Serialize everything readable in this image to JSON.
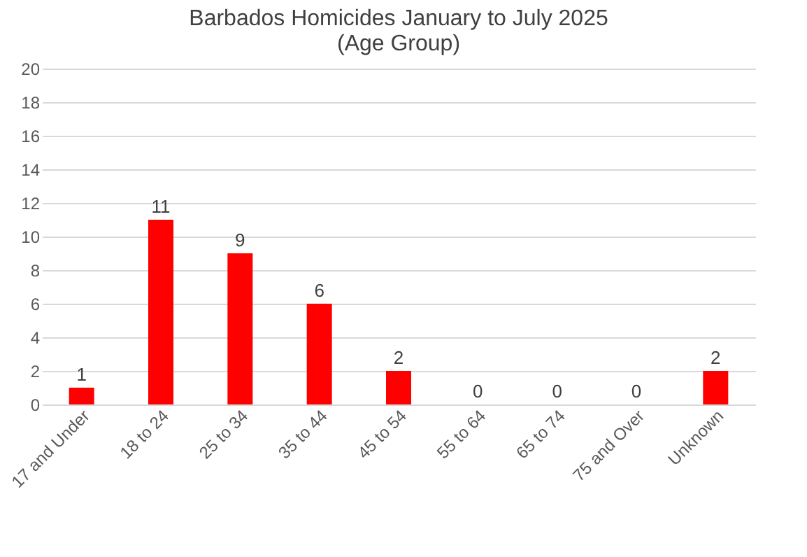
{
  "chart_data": {
    "type": "bar",
    "title": "Barbados Homicides January to July 2025\n(Age Group)",
    "categories": [
      "17 and Under",
      "18 to 24",
      "25 to 34",
      "35 to 44",
      "45 to 54",
      "55 to 64",
      "65 to 74",
      "75 and Over",
      "Unknown"
    ],
    "values": [
      1,
      11,
      9,
      6,
      2,
      0,
      0,
      0,
      2
    ],
    "color": "#ff0000",
    "ylim": [
      0,
      20
    ],
    "yticks": [
      0,
      2,
      4,
      6,
      8,
      10,
      12,
      14,
      16,
      18,
      20
    ],
    "grid": "y",
    "data_labels": true
  }
}
